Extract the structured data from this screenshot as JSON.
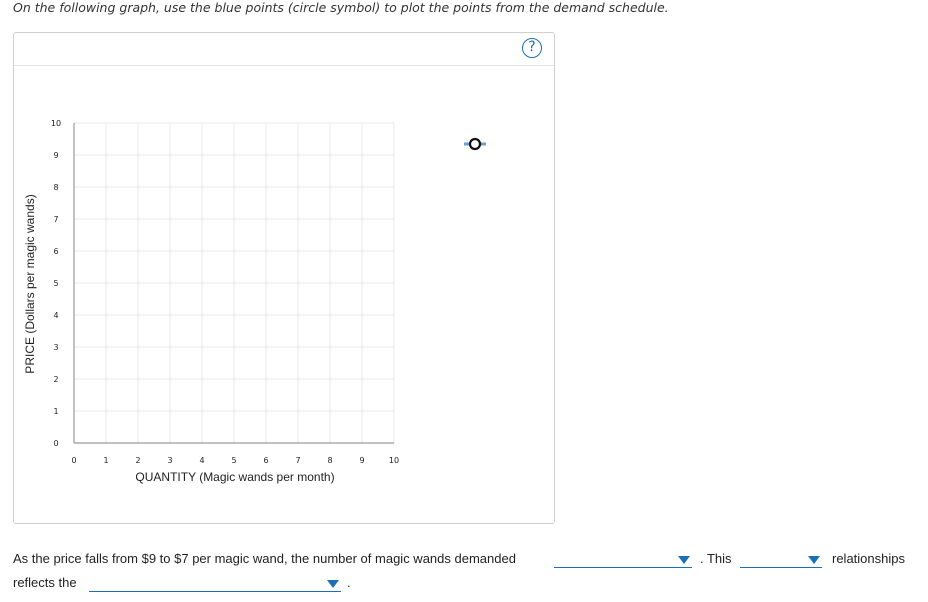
{
  "instruction": "On the following graph, use the blue points (circle symbol) to plot the points from the demand schedule.",
  "help_button_label": "?",
  "colors": {
    "accent": "#1a6fb7",
    "tool_line": "#6c9bd2",
    "grid": "#e8e8e8"
  },
  "chart_data": {
    "type": "scatter",
    "title": "",
    "xlabel": "QUANTITY (Magic wands per month)",
    "ylabel": "PRICE (Dollars per magic wands)",
    "xlim": [
      0,
      10
    ],
    "ylim": [
      0,
      10
    ],
    "x_ticks": [
      "0",
      "1",
      "2",
      "3",
      "4",
      "5",
      "6",
      "7",
      "8",
      "9",
      "10"
    ],
    "y_ticks": [
      "0",
      "1",
      "2",
      "3",
      "4",
      "5",
      "6",
      "7",
      "8",
      "9",
      "10"
    ],
    "grid": true,
    "series": [
      {
        "values": []
      }
    ]
  },
  "tools": {
    "point_tool": "blue-point-circle-icon"
  },
  "question": {
    "part1": "As the price falls from $9 to $7 per magic wand, the number of magic wands demanded",
    "part2": ". This",
    "part3": "relationships",
    "part4": "reflects the",
    "part5": ".",
    "dropdown1_value": "",
    "dropdown2_value": "",
    "dropdown3_value": ""
  }
}
